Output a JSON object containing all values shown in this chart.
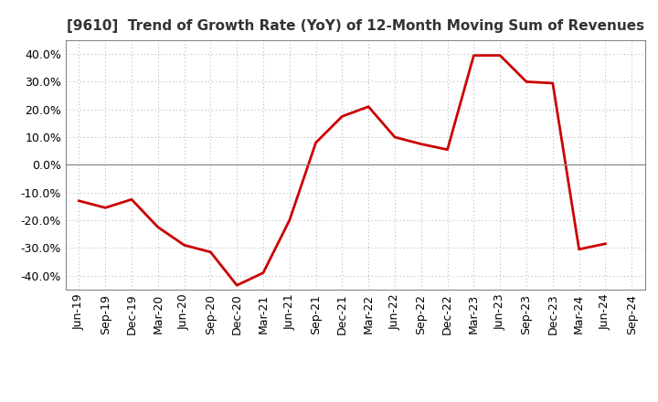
{
  "title": "[9610]  Trend of Growth Rate (YoY) of 12-Month Moving Sum of Revenues",
  "line_color": "#cc0000",
  "background_color": "#ffffff",
  "grid_color": "#aaaaaa",
  "ylim": [
    -0.45,
    0.45
  ],
  "yticks": [
    -0.4,
    -0.3,
    -0.2,
    -0.1,
    0.0,
    0.1,
    0.2,
    0.3,
    0.4
  ],
  "x_labels": [
    "Jun-19",
    "Sep-19",
    "Dec-19",
    "Mar-20",
    "Jun-20",
    "Sep-20",
    "Dec-20",
    "Mar-21",
    "Jun-21",
    "Sep-21",
    "Dec-21",
    "Mar-22",
    "Jun-22",
    "Sep-22",
    "Dec-22",
    "Mar-23",
    "Jun-23",
    "Sep-23",
    "Dec-23",
    "Mar-24",
    "Jun-24",
    "Sep-24"
  ],
  "x_values": [
    0,
    1,
    2,
    3,
    4,
    5,
    6,
    7,
    8,
    9,
    10,
    11,
    12,
    13,
    14,
    15,
    16,
    17,
    18,
    19,
    20,
    21
  ],
  "y_values": [
    -0.13,
    -0.155,
    -0.125,
    -0.225,
    -0.29,
    -0.315,
    -0.435,
    -0.39,
    -0.2,
    0.08,
    0.175,
    0.21,
    0.1,
    0.075,
    0.055,
    0.395,
    0.395,
    0.3,
    0.295,
    -0.305,
    -0.285,
    null
  ],
  "title_fontsize": 11,
  "tick_fontsize": 9,
  "linewidth": 2.0
}
